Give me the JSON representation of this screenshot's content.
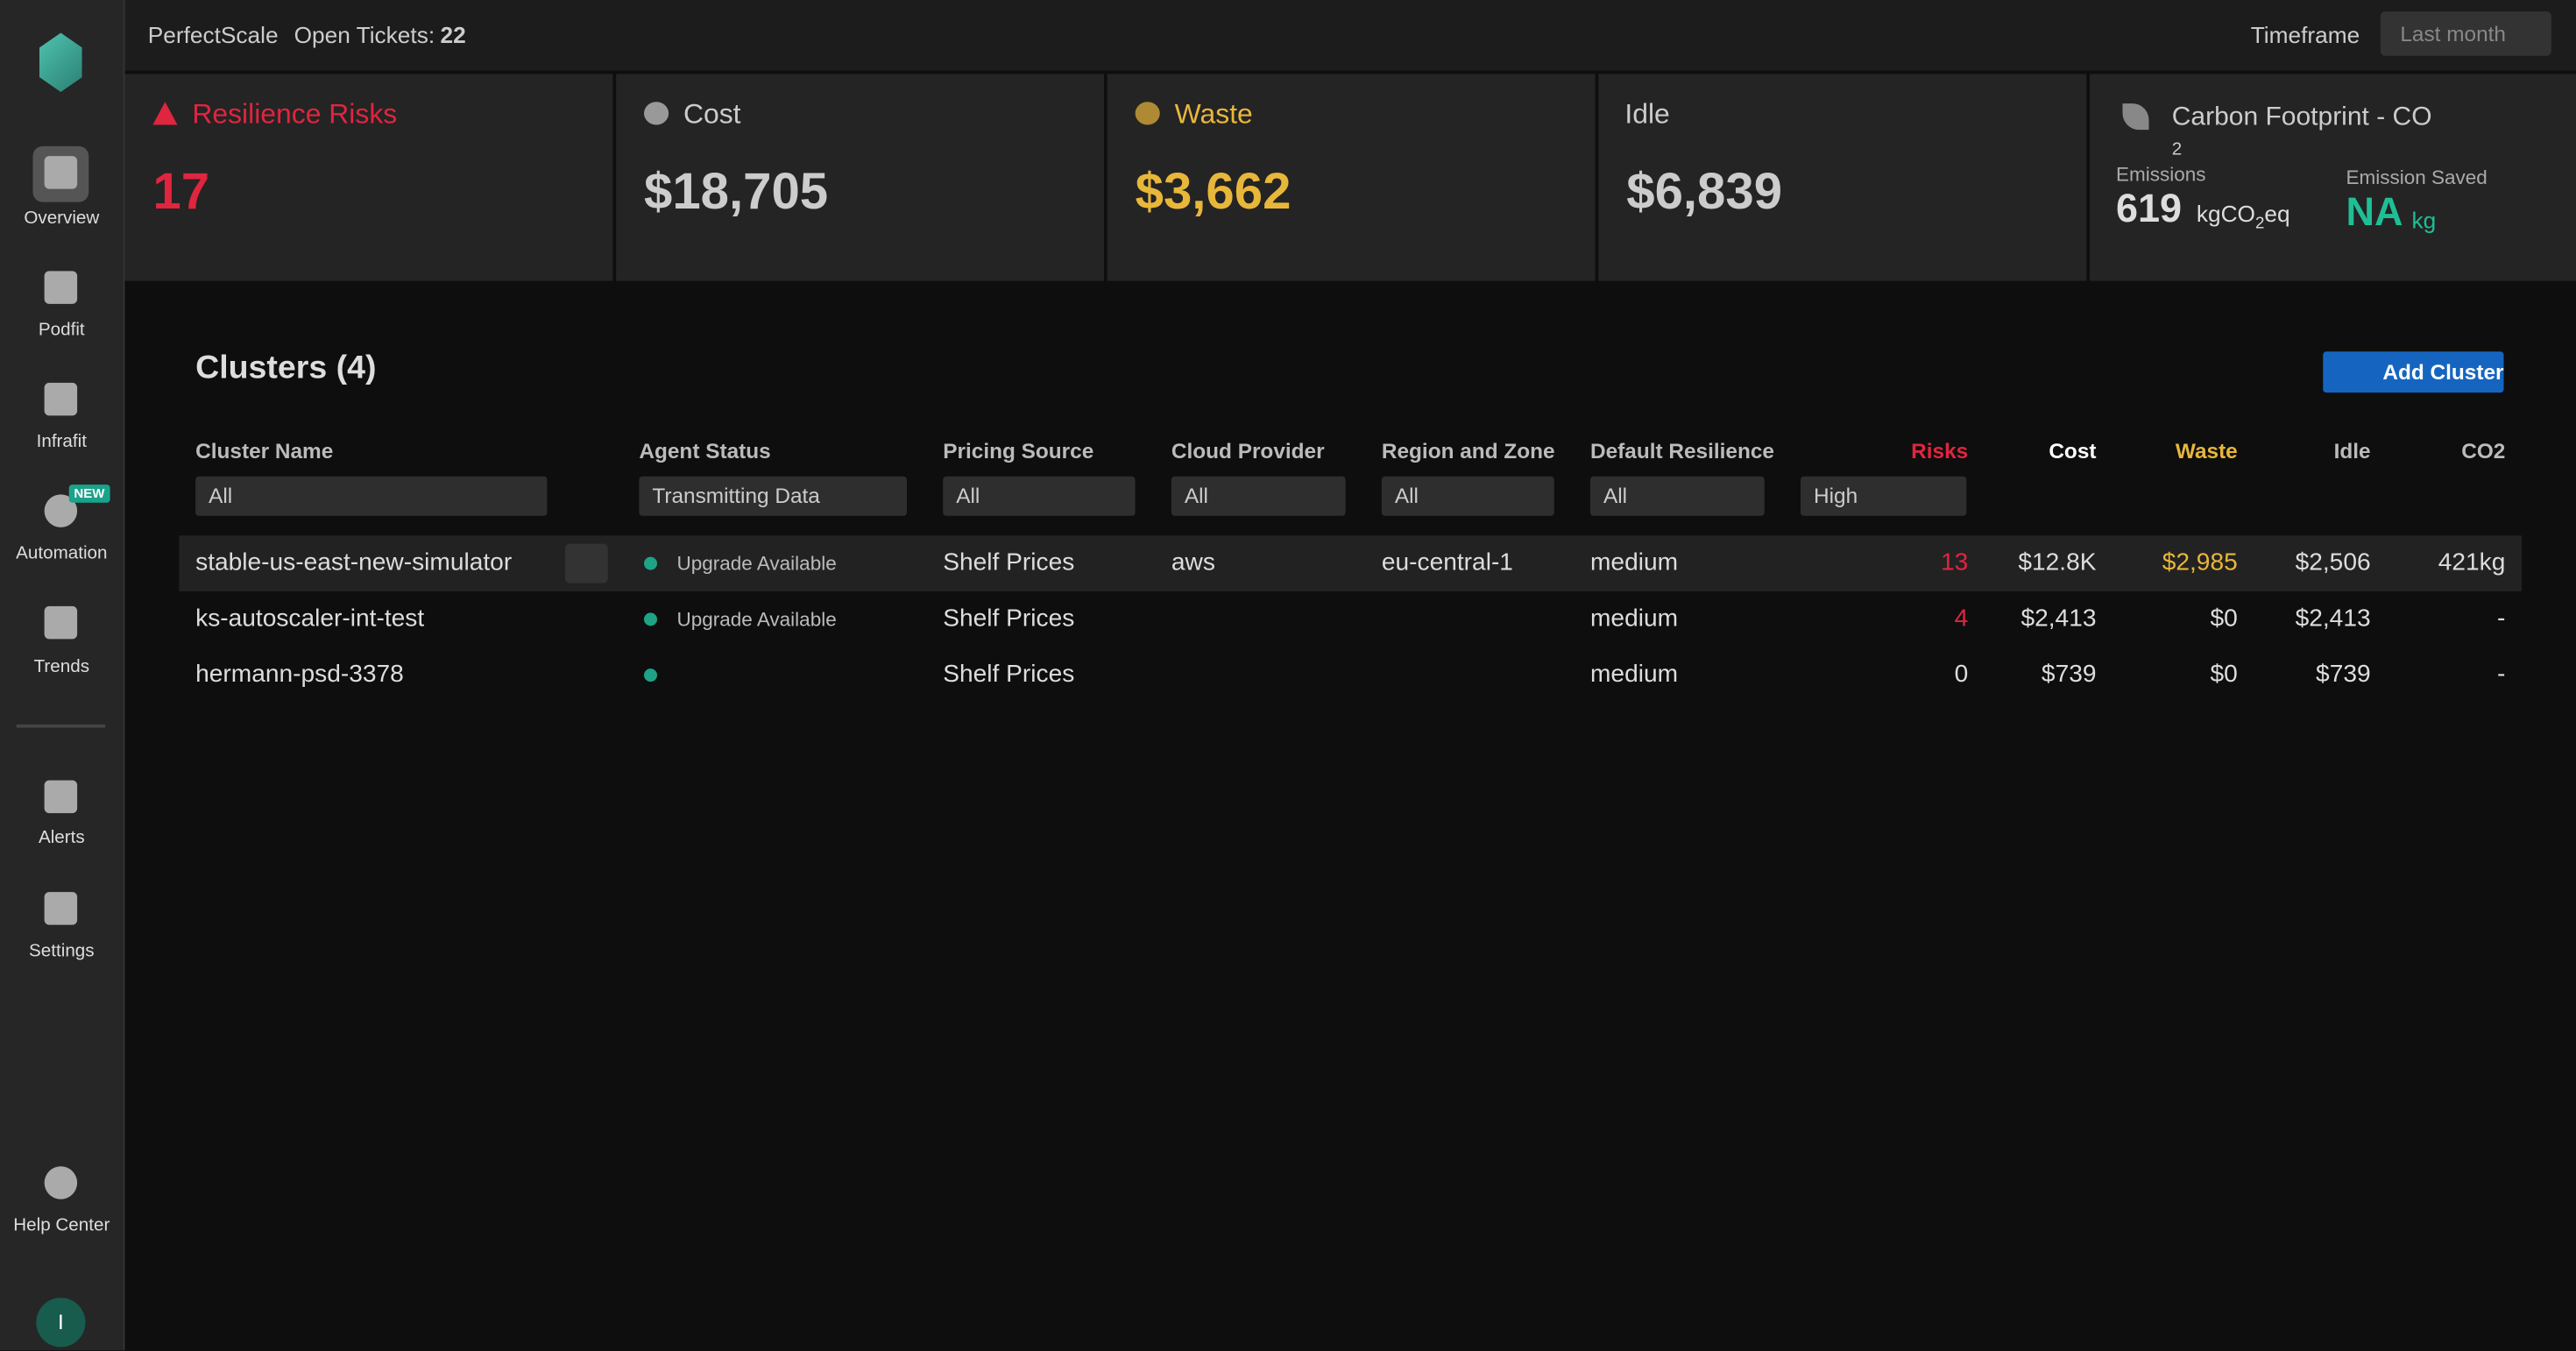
{
  "sidebar": {
    "nav": [
      "Overview",
      "Podfit",
      "Infrafit",
      "Automation",
      "Trends",
      "Alerts",
      "Settings",
      "Help Center"
    ],
    "badge": "NEW",
    "avatar": "I"
  },
  "header": {
    "brand": "PerfectScale",
    "tickets_label": "Open Tickets:",
    "tickets": 22,
    "timeframe_label": "Timeframe",
    "timeframe": "Last month"
  },
  "cards": {
    "resilience": {
      "title": "Resilience Risks",
      "value": 17
    },
    "cost": {
      "title": "Cost",
      "value": "$18,705"
    },
    "waste": {
      "title": "Waste",
      "value": "$3,662"
    },
    "idle": {
      "title": "Idle",
      "value": "$6,839"
    },
    "carbon": {
      "title": "Carbon Footprint - CO",
      "title_sub": "2",
      "emissions_label": "Emissions",
      "emissions": 619,
      "emissions_unit": [
        "kgCO",
        "2",
        "eq"
      ],
      "saved_label": "Emission Saved",
      "saved": "NA",
      "saved_unit": "kg"
    }
  },
  "clusters": {
    "title": "Clusters (4)",
    "add": "Add Cluster",
    "columns": [
      "Cluster Name",
      "Agent Status",
      "Pricing Source",
      "Cloud Provider",
      "Region and Zone",
      "Default Resilience",
      "Risks",
      "Cost",
      "Waste",
      "Idle",
      "CO2"
    ],
    "filters": [
      "All",
      "Transmitting Data",
      "All",
      "All",
      "All",
      "All",
      "High"
    ],
    "rows": [
      [
        "stable-us-east-new-simulator",
        "Upgrade Available",
        "Shelf Prices",
        "aws",
        "eu-central-1",
        "medium",
        13,
        "$12.8K",
        "$2,985",
        "$2,506",
        "421kg"
      ],
      [
        "ks-autoscaler-int-test",
        "Upgrade Available",
        "Shelf Prices",
        null,
        null,
        "medium",
        4,
        "$2,413",
        "$0",
        "$2,413",
        "-"
      ],
      [
        "hermann-psd-3378",
        null,
        "Shelf Prices",
        null,
        null,
        "medium",
        0,
        "$739",
        "$0",
        "$739",
        "-"
      ]
    ]
  }
}
